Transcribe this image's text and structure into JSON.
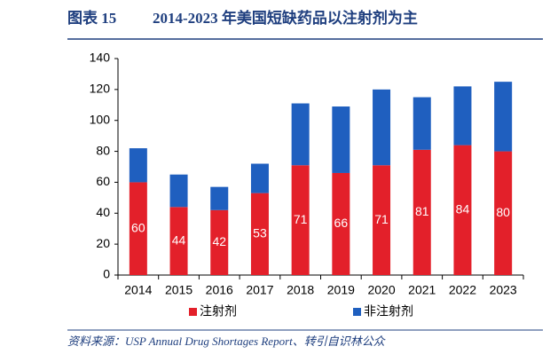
{
  "chart_data": {
    "type": "stacked_bar",
    "figure_label": "图表 15",
    "title": "2014-2023 年美国短缺药品以注射剂为主",
    "source": "资料来源：USP Annual Drug Shortages Report、转引自识林公众",
    "categories": [
      "2014",
      "2015",
      "2016",
      "2017",
      "2018",
      "2019",
      "2020",
      "2021",
      "2022",
      "2023"
    ],
    "series": [
      {
        "name": "注射剂",
        "color": "#e3202a",
        "values": [
          60,
          44,
          42,
          53,
          71,
          66,
          71,
          81,
          84,
          80
        ]
      },
      {
        "name": "非注射剂",
        "color": "#1f5fbf",
        "values": [
          22,
          21,
          15,
          19,
          40,
          43,
          49,
          34,
          38,
          45
        ]
      }
    ],
    "ylim": [
      0,
      140
    ],
    "yticks": [
      0,
      20,
      40,
      60,
      80,
      100,
      120,
      140
    ],
    "grid": false
  }
}
